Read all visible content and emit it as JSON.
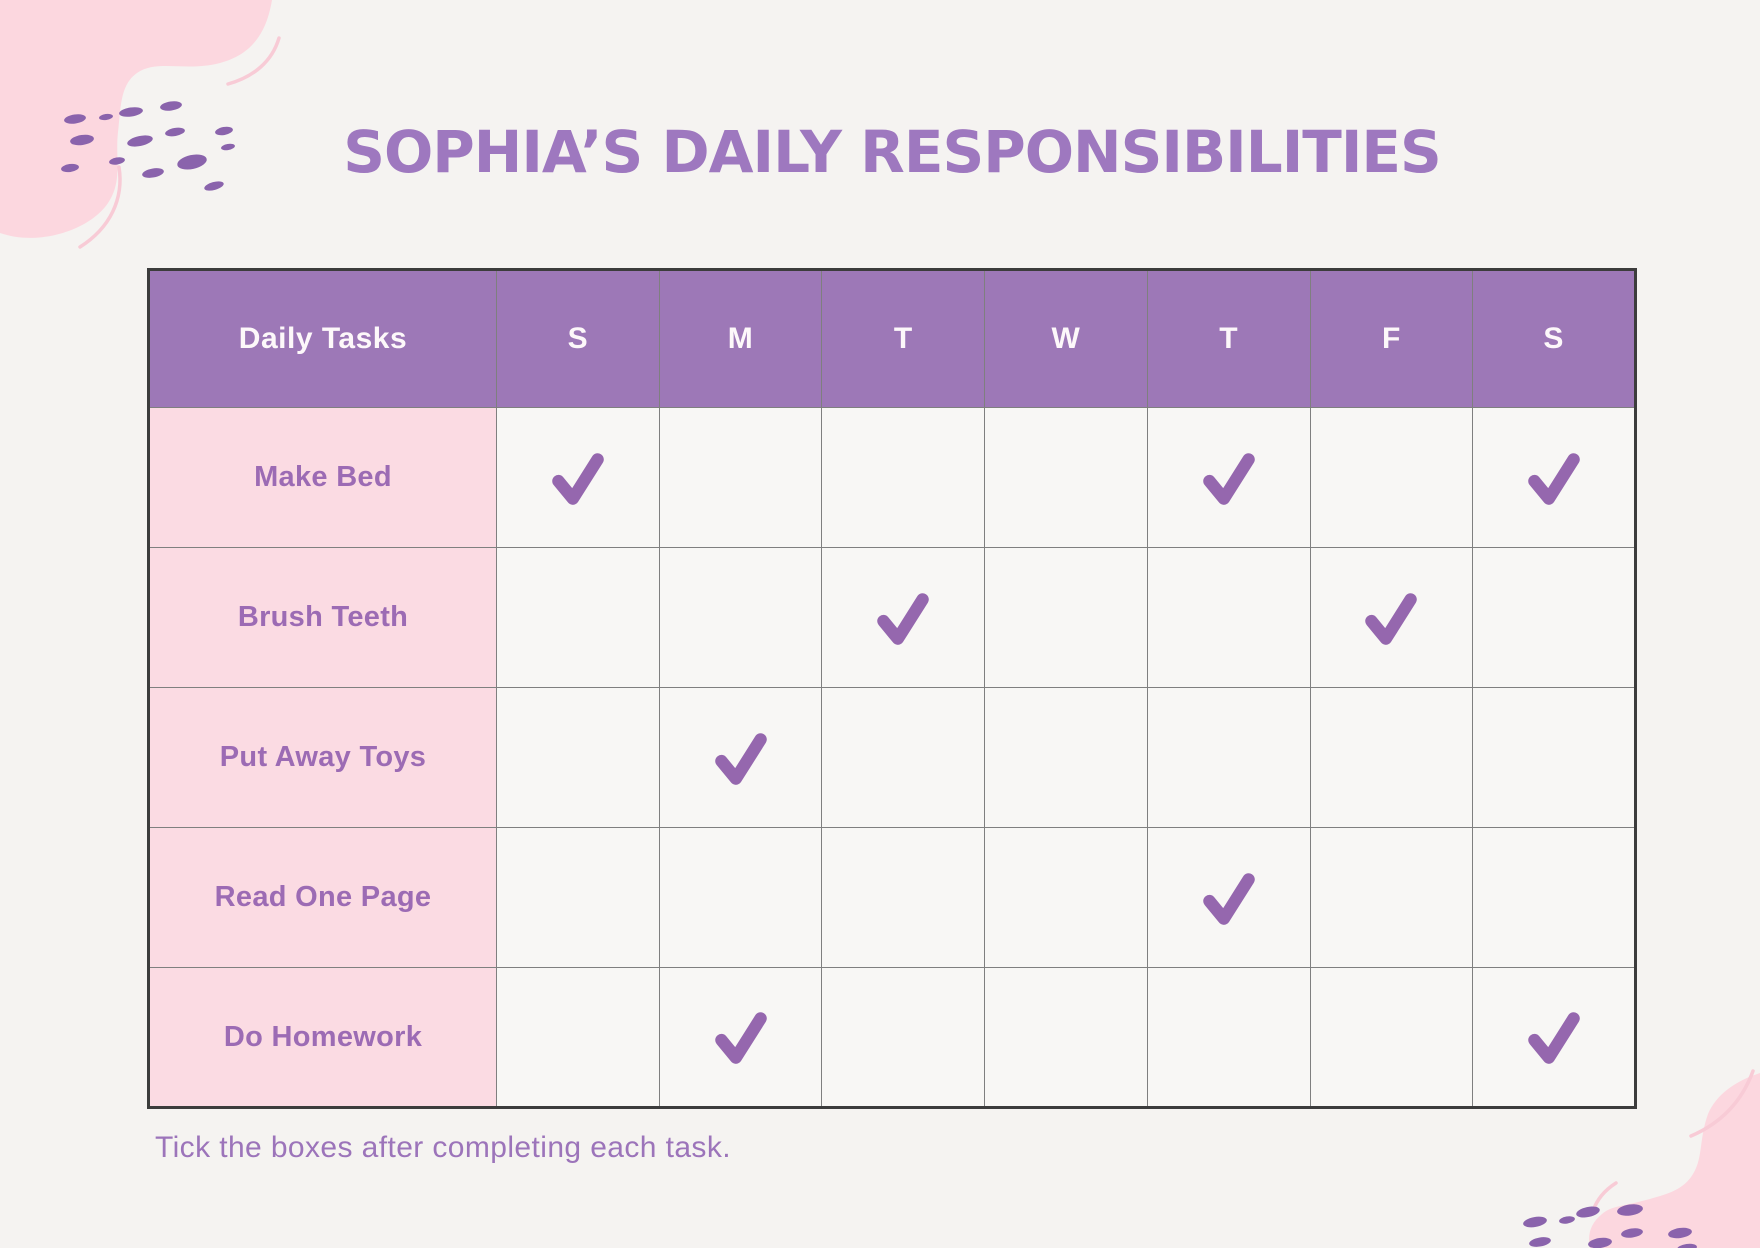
{
  "page": {
    "title": "SOPHIA’S DAILY RESPONSIBILITIES",
    "footer_note": "Tick the boxes after completing each task."
  },
  "table": {
    "header": [
      "Daily Tasks",
      "S",
      "M",
      "T",
      "W",
      "T",
      "F",
      "S"
    ],
    "rows": [
      {
        "task": "Make Bed",
        "checks": [
          true,
          false,
          false,
          false,
          true,
          false,
          true
        ]
      },
      {
        "task": "Brush Teeth",
        "checks": [
          false,
          false,
          true,
          false,
          false,
          true,
          false
        ]
      },
      {
        "task": "Put Away Toys",
        "checks": [
          false,
          true,
          false,
          false,
          false,
          false,
          false
        ]
      },
      {
        "task": "Read One Page",
        "checks": [
          false,
          false,
          false,
          false,
          true,
          false,
          false
        ]
      },
      {
        "task": "Do Homework",
        "checks": [
          false,
          true,
          false,
          false,
          false,
          false,
          true
        ]
      }
    ]
  },
  "icons": {
    "check": "✓"
  },
  "palette": {
    "page_bg": "#f5f3f1",
    "title_purple": "#9e78bf",
    "header_bg": "#9d78b7",
    "header_text": "#fdf8fa",
    "task_col_bg": "#fbdbe3",
    "task_text": "#9c6bb4",
    "day_cell_bg": "#f8f7f5",
    "check_purple": "#9567ae",
    "grid_line": "#7f7f7f",
    "outer_border": "#3c3c3c",
    "blob_pink": "#fcd7df",
    "arc_pink": "#f8cbd6",
    "dot_purple": "#8a63ac",
    "footer_text": "#9c74ba"
  }
}
